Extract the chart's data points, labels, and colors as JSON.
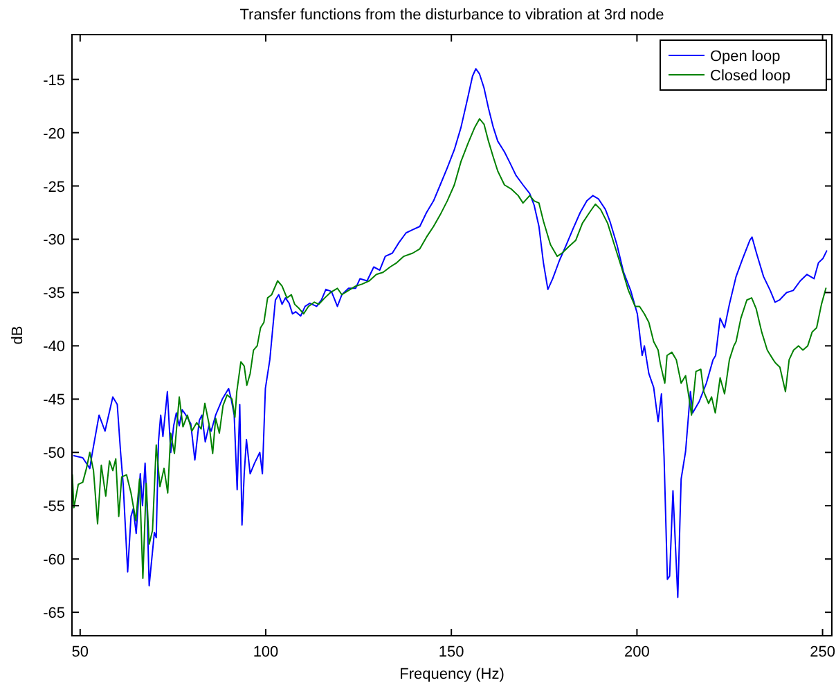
{
  "chart_data": {
    "type": "line",
    "title": "Transfer functions from the disturbance to vibration at 3rd node",
    "xlabel": "Frequency (Hz)",
    "ylabel": "dB",
    "xlim": [
      47.8,
      252.5
    ],
    "ylim": [
      -67.2,
      -10.8
    ],
    "xticks": [
      50,
      100,
      150,
      200,
      250
    ],
    "yticks": [
      -65,
      -60,
      -55,
      -50,
      -45,
      -40,
      -35,
      -30,
      -25,
      -20,
      -15
    ],
    "grid": false,
    "legend": "top right",
    "marker": "none",
    "line_style": "solid",
    "series": [
      {
        "name": "Open loop",
        "color": "#0000ff",
        "x": [
          48.3,
          50.7,
          52.6,
          53.2,
          55.1,
          56.7,
          58.8,
          60.0,
          60.9,
          61.6,
          62.8,
          63.7,
          64.3,
          65.1,
          66.2,
          66.8,
          67.5,
          68.0,
          68.6,
          70.0,
          70.5,
          71.1,
          71.7,
          72.3,
          73.5,
          74.4,
          75.2,
          75.9,
          76.7,
          77.5,
          78.5,
          79.8,
          80.9,
          82.1,
          82.8,
          83.7,
          84.7,
          85.3,
          86.5,
          88.3,
          90.0,
          90.7,
          91.5,
          92.3,
          93.0,
          93.6,
          94.2,
          94.8,
          95.8,
          97.0,
          98.4,
          99.1,
          99.9,
          101.1,
          102.6,
          103.5,
          104.4,
          105.3,
          106.3,
          107.2,
          108.1,
          109.4,
          110.6,
          111.9,
          113.7,
          115.0,
          116.2,
          117.7,
          119.3,
          120.5,
          122.3,
          124.2,
          125.4,
          127.3,
          129.1,
          130.7,
          132.2,
          134.1,
          135.9,
          137.8,
          139.6,
          141.5,
          143.3,
          145.2,
          147.0,
          148.9,
          150.8,
          152.6,
          154.5,
          155.7,
          156.6,
          157.6,
          158.8,
          160.0,
          161.3,
          162.5,
          164.3,
          165.6,
          167.4,
          169.3,
          171.1,
          172.3,
          173.6,
          174.8,
          176.0,
          177.3,
          179.1,
          181.0,
          182.8,
          184.7,
          186.5,
          188.1,
          189.6,
          191.5,
          192.7,
          194.6,
          196.4,
          198.3,
          200.1,
          201.4,
          202.0,
          203.2,
          204.5,
          205.7,
          206.6,
          207.3,
          208.2,
          208.8,
          209.7,
          211.0,
          211.9,
          213.1,
          214.4,
          215.0,
          216.8,
          218.7,
          220.5,
          221.2,
          222.4,
          223.6,
          224.9,
          226.7,
          228.5,
          230.4,
          231.0,
          232.2,
          234.1,
          235.9,
          237.2,
          238.4,
          240.3,
          242.1,
          244.0,
          245.8,
          247.7,
          248.9,
          250.1,
          251.1
        ],
        "values": [
          -50.3,
          -50.5,
          -51.5,
          -50.2,
          -46.5,
          -48,
          -44.8,
          -45.5,
          -50,
          -53,
          -61.2,
          -56,
          -55.3,
          -57.6,
          -52,
          -55,
          -51,
          -55,
          -62.5,
          -57.5,
          -58,
          -49,
          -46.5,
          -48.5,
          -44.3,
          -50,
          -47.5,
          -46.3,
          -47.5,
          -46,
          -46.5,
          -47.3,
          -50.7,
          -47,
          -46.5,
          -49,
          -47.5,
          -48,
          -46.5,
          -45,
          -44,
          -45,
          -46.5,
          -53.5,
          -45.5,
          -56.8,
          -52,
          -48.8,
          -52,
          -51,
          -50,
          -52,
          -44,
          -41.3,
          -35.7,
          -35.2,
          -36.1,
          -35.5,
          -36,
          -37,
          -36.8,
          -37.2,
          -36.3,
          -36,
          -36.3,
          -35.7,
          -34.7,
          -34.9,
          -36.3,
          -35.2,
          -34.6,
          -34.6,
          -33.7,
          -33.9,
          -32.6,
          -32.9,
          -31.6,
          -31.3,
          -30.3,
          -29.4,
          -29.1,
          -28.8,
          -27.5,
          -26.4,
          -24.9,
          -23.3,
          -21.6,
          -19.5,
          -16.6,
          -14.7,
          -14,
          -14.5,
          -15.8,
          -17.7,
          -19.5,
          -20.8,
          -21.8,
          -22.7,
          -24,
          -24.9,
          -25.7,
          -26.8,
          -28.8,
          -32.2,
          -34.7,
          -33.7,
          -32,
          -30.5,
          -29,
          -27.5,
          -26.4,
          -25.9,
          -26.2,
          -27.2,
          -28.3,
          -30.5,
          -33.1,
          -34.8,
          -37,
          -40.9,
          -40,
          -42.6,
          -43.9,
          -47.1,
          -44.5,
          -50.4,
          -61.9,
          -61.6,
          -53.6,
          -63.6,
          -52.5,
          -49.9,
          -44.3,
          -46.3,
          -45.2,
          -43.5,
          -41.3,
          -40.9,
          -37.4,
          -38.3,
          -36.1,
          -33.5,
          -31.8,
          -30.1,
          -29.8,
          -31.3,
          -33.5,
          -34.8,
          -35.9,
          -35.7,
          -35,
          -34.8,
          -33.9,
          -33.3,
          -33.7,
          -32.2,
          -31.8,
          -31.1
        ]
      },
      {
        "name": "Closed loop",
        "color": "#008000",
        "x": [
          47.9,
          48.3,
          49.5,
          50.7,
          51.7,
          52.6,
          53.6,
          54.7,
          55.7,
          56.9,
          57.9,
          58.8,
          59.6,
          60.4,
          61.2,
          62.5,
          63.7,
          65.0,
          66.0,
          66.9,
          67.8,
          68.6,
          69.5,
          70.5,
          71.5,
          72.6,
          73.6,
          74.4,
          75.4,
          76.7,
          77.7,
          78.9,
          80.1,
          81.4,
          82.6,
          83.6,
          84.7,
          85.7,
          86.5,
          87.5,
          88.5,
          89.6,
          90.9,
          91.7,
          92.2,
          93.3,
          94.2,
          94.9,
          95.8,
          96.7,
          97.7,
          98.6,
          99.5,
          100.5,
          101.6,
          103.2,
          104.4,
          105.7,
          106.9,
          107.8,
          109.0,
          110.2,
          111.5,
          113.1,
          114.3,
          115.9,
          117.4,
          119.3,
          120.5,
          122.3,
          124.2,
          126.0,
          127.9,
          129.8,
          131.6,
          133.5,
          135.3,
          137.2,
          139.6,
          141.5,
          143.3,
          145.2,
          147.0,
          148.9,
          150.8,
          152.6,
          154.5,
          156.3,
          157.6,
          158.8,
          160.0,
          161.3,
          162.5,
          164.3,
          166.2,
          168.0,
          169.3,
          171.1,
          172.3,
          173.6,
          174.8,
          176.7,
          178.5,
          179.8,
          181.6,
          183.5,
          185.3,
          187.2,
          188.8,
          190.2,
          192.1,
          193.9,
          195.8,
          197.7,
          199.5,
          200.7,
          202.0,
          203.2,
          204.5,
          205.7,
          206.3,
          207.5,
          208.1,
          209.4,
          210.6,
          211.9,
          213.1,
          214.0,
          214.7,
          215.9,
          217.2,
          218.0,
          219.3,
          220.1,
          221.1,
          222.4,
          223.6,
          224.9,
          226.1,
          226.7,
          228.0,
          229.6,
          230.9,
          232.1,
          233.6,
          235.1,
          236.7,
          237.3,
          238.5,
          240.0,
          241.0,
          242.2,
          243.5,
          244.7,
          246.0,
          247.2,
          248.4,
          249.7,
          250.9
        ],
        "values": [
          -52.1,
          -55.2,
          -53,
          -52.8,
          -51.5,
          -50,
          -51.7,
          -56.7,
          -51.2,
          -54.1,
          -50.8,
          -51.7,
          -50.6,
          -56,
          -52.3,
          -52.1,
          -53.8,
          -56.4,
          -52.5,
          -61.8,
          -52.9,
          -58.6,
          -57.3,
          -49.3,
          -53.2,
          -51.5,
          -53.8,
          -48.2,
          -50.1,
          -44.8,
          -47.6,
          -46.5,
          -48,
          -47.2,
          -47.8,
          -45.4,
          -47.3,
          -50.1,
          -46.8,
          -48.2,
          -45.6,
          -44.6,
          -45,
          -46.7,
          -44.3,
          -41.5,
          -41.9,
          -43.7,
          -42.6,
          -40.4,
          -40,
          -38.3,
          -37.8,
          -35.5,
          -35.2,
          -33.9,
          -34.4,
          -35.5,
          -35.2,
          -36.1,
          -36.5,
          -37,
          -36.3,
          -35.9,
          -36.1,
          -35.5,
          -35,
          -34.6,
          -35.2,
          -34.8,
          -34.4,
          -34.2,
          -33.9,
          -33.3,
          -33.1,
          -32.6,
          -32.2,
          -31.6,
          -31.3,
          -30.9,
          -29.8,
          -28.8,
          -27.7,
          -26.4,
          -24.9,
          -22.7,
          -21,
          -19.5,
          -18.7,
          -19.2,
          -20.8,
          -22.3,
          -23.6,
          -24.9,
          -25.3,
          -25.9,
          -26.6,
          -25.9,
          -26.4,
          -26.6,
          -28.3,
          -30.5,
          -31.6,
          -31.3,
          -30.7,
          -30.1,
          -28.5,
          -27.5,
          -26.7,
          -27.2,
          -28.5,
          -30.5,
          -32.6,
          -34.8,
          -36.3,
          -36.3,
          -37,
          -37.8,
          -39.6,
          -40.4,
          -41.7,
          -43.5,
          -40.9,
          -40.6,
          -41.3,
          -43.5,
          -42.8,
          -44.8,
          -46.5,
          -42.4,
          -42.2,
          -44.3,
          -45.4,
          -44.8,
          -46.3,
          -43,
          -44.5,
          -41.3,
          -40,
          -39.6,
          -37.4,
          -35.7,
          -35.5,
          -36.5,
          -38.7,
          -40.4,
          -41.3,
          -41.6,
          -42,
          -44.3,
          -41.3,
          -40.4,
          -40,
          -40.4,
          -40,
          -38.7,
          -38.3,
          -36.1,
          -34.6
        ]
      }
    ]
  }
}
